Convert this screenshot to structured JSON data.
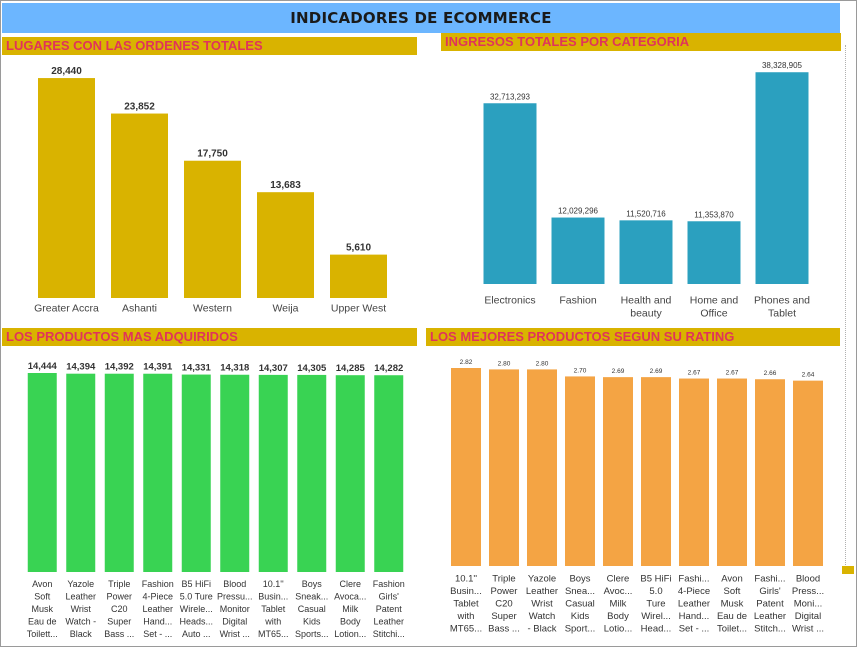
{
  "header": {
    "title": "INDICADORES DE ECOMMERCE"
  },
  "panels": {
    "orders": {
      "title": "LUGARES CON LAS ORDENES TOTALES"
    },
    "revenue": {
      "title": "INGRESOS TOTALES POR CATEGORIA"
    },
    "products": {
      "title": "LOS PRODUCTOS MAS ADQUIRIDOS"
    },
    "rating": {
      "title": "LOS MEJORES PRODUCTOS SEGUN SU RATING"
    }
  },
  "colors": {
    "header": "#6cb6ff",
    "title_bar": "#d9b300",
    "title_text": "#e0345a",
    "orders": "#d9b300",
    "revenue": "#2ba0bf",
    "products": "#39d353",
    "rating": "#f4a444"
  },
  "chart_data": [
    {
      "type": "bar",
      "title": "LUGARES CON LAS ORDENES TOTALES",
      "categories": [
        [
          "Greater Accra"
        ],
        [
          "Ashanti"
        ],
        [
          "Western"
        ],
        [
          "Weija"
        ],
        [
          "Upper West"
        ]
      ],
      "values": [
        28440,
        23852,
        17750,
        13683,
        5610
      ],
      "value_labels": [
        "28,440",
        "23,852",
        "17,750",
        "13,683",
        "5,610"
      ],
      "ylim": [
        0,
        30000
      ]
    },
    {
      "type": "bar",
      "title": "INGRESOS TOTALES POR CATEGORIA",
      "categories": [
        [
          "Electronics"
        ],
        [
          "Fashion"
        ],
        [
          "Health and",
          "beauty"
        ],
        [
          "Home and",
          "Office"
        ],
        [
          "Phones and",
          "Tablet"
        ]
      ],
      "values": [
        32713293,
        12029296,
        11520716,
        11353870,
        38328905
      ],
      "value_labels": [
        "32,713,293",
        "12,029,296",
        "11,520,716",
        "11,353,870",
        "38,328,905"
      ],
      "ylim": [
        0,
        40000000
      ]
    },
    {
      "type": "bar",
      "title": "LOS PRODUCTOS MAS ADQUIRIDOS",
      "categories": [
        [
          "Avon",
          "Soft",
          "Musk",
          "Eau de",
          "Toilett..."
        ],
        [
          "Yazole",
          "Leather",
          "Wrist",
          "Watch -",
          "Black"
        ],
        [
          "Triple",
          "Power",
          "C20",
          "Super",
          "Bass ..."
        ],
        [
          "Fashion",
          "4-Piece",
          "Leather",
          "Hand...",
          "Set - ..."
        ],
        [
          "B5 HiFi",
          "5.0 Ture",
          "Wirele...",
          "Heads...",
          "Auto ..."
        ],
        [
          "Blood",
          "Pressu...",
          "Monitor",
          "Digital",
          "Wrist ..."
        ],
        [
          "10.1''",
          "Busin...",
          "Tablet",
          "with",
          "MT65..."
        ],
        [
          "Boys",
          "Sneak...",
          "Casual",
          "Kids",
          "Sports..."
        ],
        [
          "Clere",
          "Avoca...",
          "Milk",
          "Body",
          "Lotion..."
        ],
        [
          "Fashion",
          "Girls'",
          "Patent",
          "Leather",
          "Stitchi..."
        ]
      ],
      "values": [
        14444,
        14394,
        14392,
        14391,
        14331,
        14318,
        14307,
        14305,
        14285,
        14282
      ],
      "value_labels": [
        "14,444",
        "14,394",
        "14,392",
        "14,391",
        "14,331",
        "14,318",
        "14,307",
        "14,305",
        "14,285",
        "14,282"
      ],
      "ylim": [
        0,
        14444
      ]
    },
    {
      "type": "bar",
      "title": "LOS MEJORES PRODUCTOS SEGUN SU RATING",
      "categories": [
        [
          "10.1''",
          "Busin...",
          "Tablet",
          "with",
          "MT65..."
        ],
        [
          "Triple",
          "Power",
          "C20",
          "Super",
          "Bass ..."
        ],
        [
          "Yazole",
          "Leather",
          "Wrist",
          "Watch",
          "- Black"
        ],
        [
          "Boys",
          "Snea...",
          "Casual",
          "Kids",
          "Sport..."
        ],
        [
          "Clere",
          "Avoc...",
          "Milk",
          "Body",
          "Lotio..."
        ],
        [
          "B5 HiFi",
          "5.0",
          "Ture",
          "Wirel...",
          "Head..."
        ],
        [
          "Fashi...",
          "4-Piece",
          "Leather",
          "Hand...",
          "Set - ..."
        ],
        [
          "Avon",
          "Soft",
          "Musk",
          "Eau de",
          "Toilet..."
        ],
        [
          "Fashi...",
          "Girls'",
          "Patent",
          "Leather",
          "Stitch..."
        ],
        [
          "Blood",
          "Press...",
          "Moni...",
          "Digital",
          "Wrist ..."
        ]
      ],
      "values": [
        2.82,
        2.8,
        2.8,
        2.7,
        2.69,
        2.69,
        2.67,
        2.67,
        2.66,
        2.64
      ],
      "value_labels": [
        "2.82",
        "2.80",
        "2.80",
        "2.70",
        "2.69",
        "2.69",
        "2.67",
        "2.67",
        "2.66",
        "2.64"
      ],
      "ylim": [
        0,
        2.82
      ]
    }
  ]
}
